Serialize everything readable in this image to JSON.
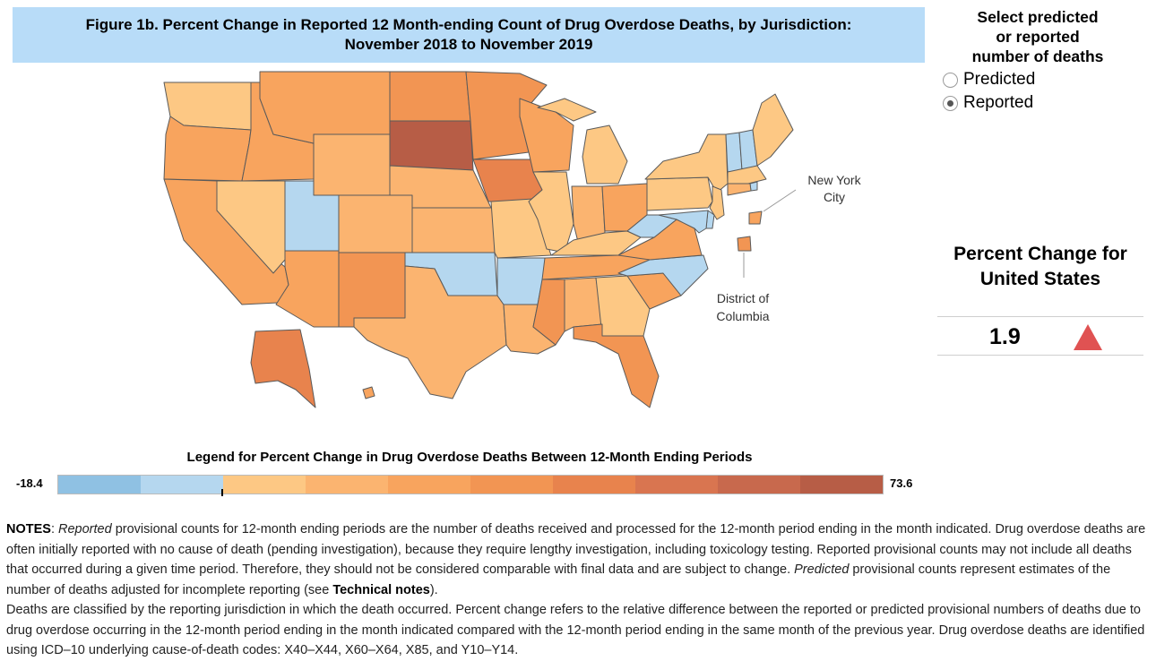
{
  "title": {
    "line1": "Figure 1b. Percent Change in Reported 12 Month-ending Count of Drug Overdose Deaths, by Jurisdiction:",
    "line2": "November 2018 to November 2019"
  },
  "selector": {
    "heading": [
      "Select predicted",
      "or reported",
      "number of deaths"
    ],
    "options": [
      {
        "label": "Predicted",
        "selected": false
      },
      {
        "label": "Reported",
        "selected": true
      }
    ]
  },
  "us_summary": {
    "heading": [
      "Percent Change for",
      "United States"
    ],
    "value": "1.9",
    "direction": "up",
    "arrow_color": "#e05252"
  },
  "map": {
    "callouts": {
      "nyc": [
        "New York",
        "City"
      ],
      "dc": [
        "District of",
        "Columbia"
      ]
    },
    "state_bins": {
      "WA": 2,
      "OR": 4,
      "CA": 4,
      "NV": 2,
      "ID": 4,
      "MT": 4,
      "WY": 3,
      "UT": 1,
      "AZ": 4,
      "NM": 5,
      "CO": 3,
      "ND": 5,
      "SD": 9,
      "NE": 3,
      "KS": 3,
      "OK": 1,
      "TX": 3,
      "MN": 5,
      "IA": 6,
      "MO": 2,
      "AR": 1,
      "LA": 3,
      "WI": 4,
      "IL": 2,
      "MI": 2,
      "IN": 3,
      "OH": 4,
      "KY": 2,
      "TN": 4,
      "MS": 5,
      "AL": 3,
      "GA": 2,
      "FL": 5,
      "SC": 4,
      "NC": 1,
      "VA": 4,
      "WV": 1,
      "PA": 2,
      "NY": 2,
      "VT": 1,
      "NH": 1,
      "ME": 2,
      "MA": 2,
      "RI": 1,
      "CT": 3,
      "NJ": 2,
      "DE": 1,
      "MD": 1,
      "AK": 6,
      "HI": 4,
      "NYC": 4,
      "DC": 5
    }
  },
  "legend": {
    "title": "Legend for Percent Change in Drug Overdose Deaths Between 12-Month Ending Periods",
    "min": "-18.4",
    "max": "73.6",
    "colors": [
      "#8fc1e3",
      "#b5d7ef",
      "#fdc884",
      "#fbb470",
      "#f8a45e",
      "#f29553",
      "#e8834d",
      "#d97550",
      "#c8694d",
      "#b75d46"
    ]
  },
  "notes": {
    "label": "NOTES",
    "s1": ": ",
    "i1": "Reported",
    "s2": " provisional counts for 12-month ending periods are the number of deaths received and processed for the 12-month period ending in the month indicated. Drug overdose deaths are often initially reported with no cause of death (pending investigation), because they require lengthy investigation, including toxicology testing. Reported provisional counts may not include all deaths that occurred during a given time period. Therefore, they should not be considered comparable with final data and are subject to change. ",
    "i2": "Predicted",
    "s3": " provisional counts represent estimates of the number of deaths adjusted for incomplete reporting (see ",
    "link": "Technical notes",
    "s4": ").",
    "p2": "Deaths are classified by the reporting jurisdiction in which the death occurred. Percent change refers to the relative difference between the reported or predicted provisional numbers of deaths due to drug overdose occurring in the 12-month period ending in the month indicated compared with the 12-month period ending in the same month of the previous year. Drug overdose deaths are identified using ICD–10 underlying cause-of-death codes: X40–X44, X60–X64, X85, and Y10–Y14."
  }
}
